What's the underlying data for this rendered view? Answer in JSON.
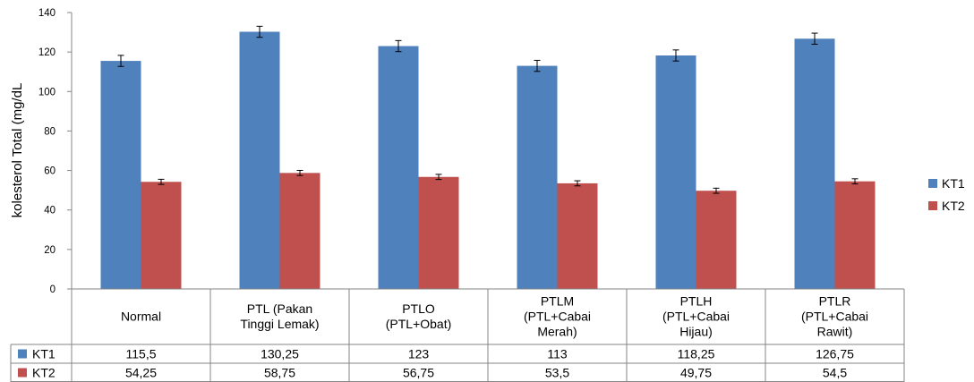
{
  "chart_data": {
    "type": "bar",
    "title": "",
    "xlabel": "",
    "ylabel": "kolesterol Total (mg/dL",
    "ylim": [
      0,
      140
    ],
    "ytick_step": 20,
    "yticks": [
      "0",
      "20",
      "40",
      "60",
      "80",
      "100",
      "120",
      "140"
    ],
    "category_lines": [
      [
        "Normal"
      ],
      [
        "PTL (Pakan",
        "Tinggi Lemak)"
      ],
      [
        "PTLO",
        "(PTL+Obat)"
      ],
      [
        "PTLM",
        "(PTL+Cabai",
        "Merah)"
      ],
      [
        "PTLH",
        "(PTL+Cabai",
        "Hijau)"
      ],
      [
        "PTLR",
        "(PTL+Cabai",
        "Rawit)"
      ]
    ],
    "series": [
      {
        "name": "KT1",
        "color": "#4F81BD",
        "values": [
          115.5,
          130.25,
          123,
          113,
          118.25,
          126.75
        ],
        "labels": [
          "115,5",
          "130,25",
          "123",
          "113",
          "118,25",
          "126,75"
        ],
        "errors": [
          2.8,
          2.8,
          2.8,
          2.8,
          2.8,
          2.8
        ]
      },
      {
        "name": "KT2",
        "color": "#C0504D",
        "values": [
          54.25,
          58.75,
          56.75,
          53.5,
          49.75,
          54.5
        ],
        "labels": [
          "54,25",
          "58,75",
          "56,75",
          "53,5",
          "49,75",
          "54,5"
        ],
        "errors": [
          1.3,
          1.3,
          1.3,
          1.3,
          1.3,
          1.3
        ]
      }
    ],
    "legend_position": "right",
    "data_table": true,
    "grid": false
  }
}
